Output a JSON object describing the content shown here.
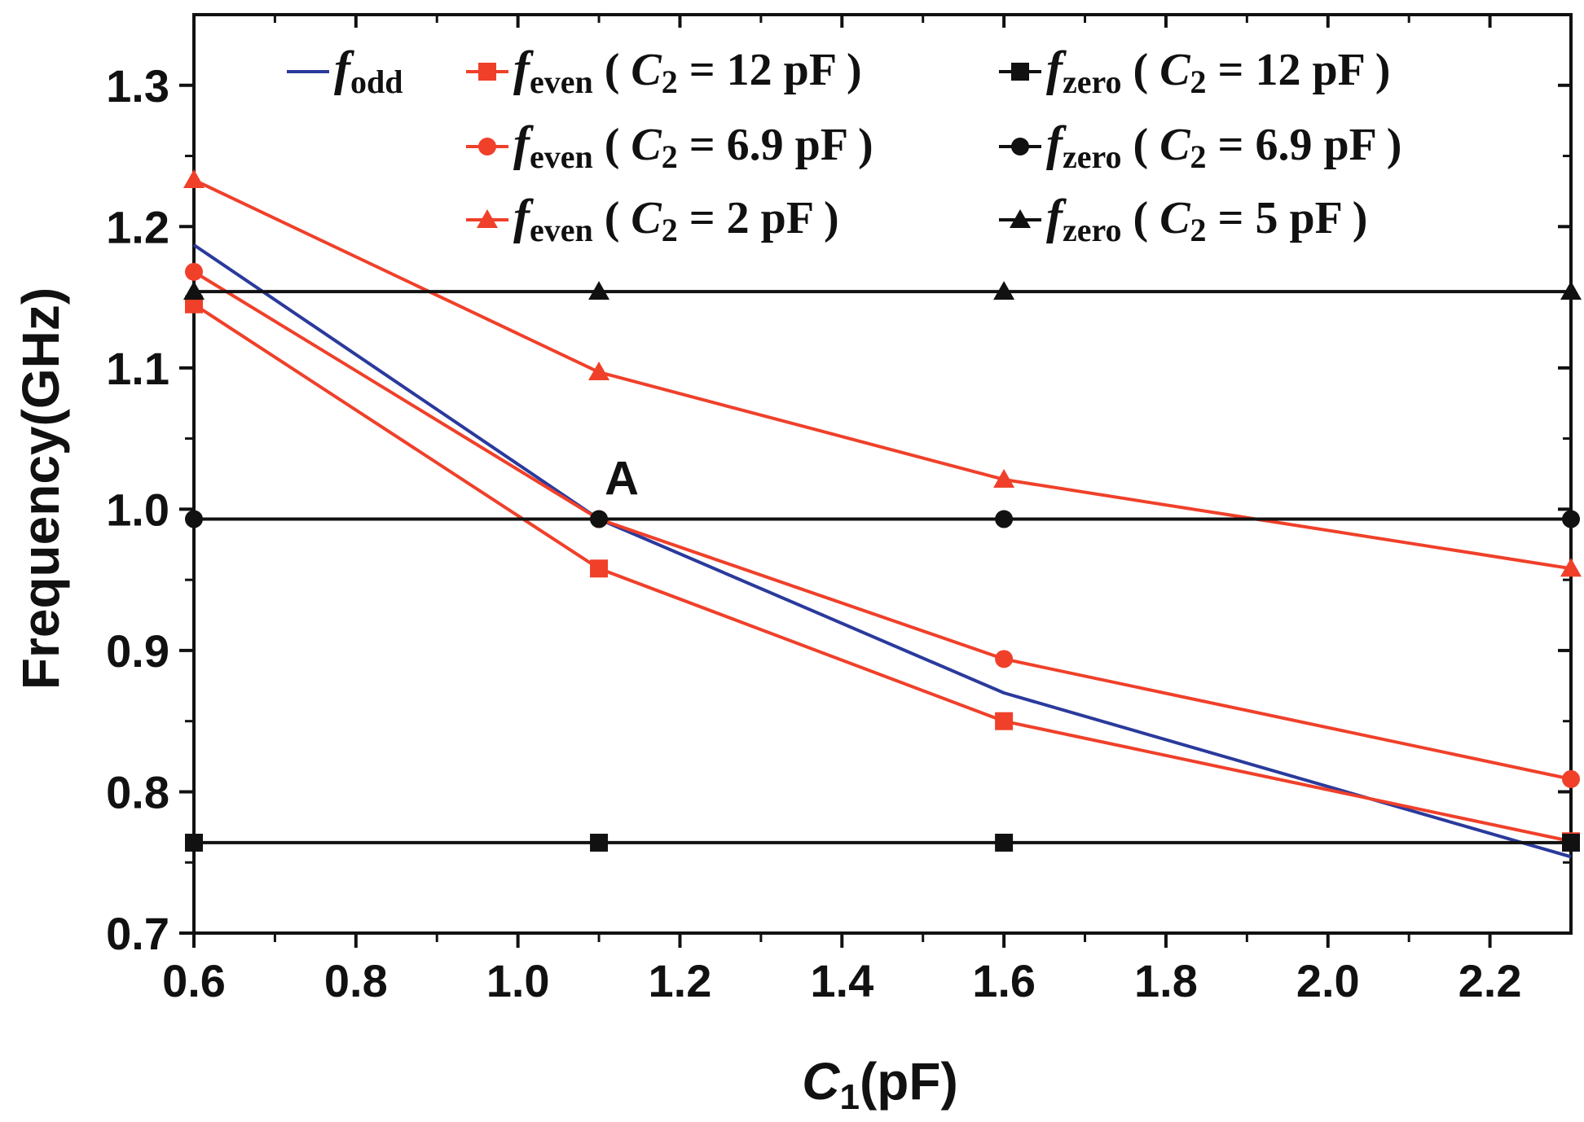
{
  "chart_data": {
    "type": "line",
    "title": "",
    "xlabel": {
      "main": "C",
      "sub": "1",
      "unit": "(pF)"
    },
    "ylabel": "Frequency(GHz)",
    "xlim": [
      0.6,
      2.3
    ],
    "ylim": [
      0.7,
      1.35
    ],
    "xticks": [
      "0.6",
      "0.8",
      "1.0",
      "1.2",
      "1.4",
      "1.6",
      "1.8",
      "2.0",
      "2.2"
    ],
    "yticks": [
      "0.7",
      "0.8",
      "0.9",
      "1.0",
      "1.1",
      "1.2",
      "1.3"
    ],
    "annotations": [
      {
        "text": "A",
        "x": 1.1,
        "y": 0.993
      }
    ],
    "series": [
      {
        "id": "odd",
        "name": "f_odd",
        "f": "f",
        "sub": "odd",
        "cond": "",
        "color": "#2a3a9c",
        "marker": "none",
        "x": [
          0.6,
          1.1,
          1.6,
          2.3
        ],
        "y": [
          1.187,
          0.993,
          0.87,
          0.754
        ]
      },
      {
        "id": "even12",
        "name": "f_even ( C2 = 12 pF )",
        "f": "f",
        "sub": "even",
        "cond": "12 pF",
        "color": "#f0402a",
        "marker": "square",
        "x": [
          0.6,
          1.1,
          1.6,
          2.3
        ],
        "y": [
          1.145,
          0.958,
          0.85,
          0.765
        ]
      },
      {
        "id": "even69",
        "name": "f_even ( C2 = 6.9 pF )",
        "f": "f",
        "sub": "even",
        "cond": "6.9 pF",
        "color": "#f0402a",
        "marker": "circle",
        "x": [
          0.6,
          1.1,
          1.6,
          2.3
        ],
        "y": [
          1.168,
          0.993,
          0.894,
          0.809
        ]
      },
      {
        "id": "even2",
        "name": "f_even ( C2 = 2 pF )",
        "f": "f",
        "sub": "even",
        "cond": "2 pF",
        "color": "#f0402a",
        "marker": "triangle",
        "x": [
          0.6,
          1.1,
          1.6,
          2.3
        ],
        "y": [
          1.233,
          1.097,
          1.021,
          0.958
        ]
      },
      {
        "id": "zero12",
        "name": "f_zero ( C2 = 12 pF )",
        "f": "f",
        "sub": "zero",
        "cond": "12 pF",
        "color": "#111111",
        "marker": "square",
        "x": [
          0.6,
          1.1,
          1.6,
          2.3
        ],
        "y": [
          0.764,
          0.764,
          0.764,
          0.764
        ]
      },
      {
        "id": "zero69",
        "name": "f_zero ( C2 = 6.9 pF )",
        "f": "f",
        "sub": "zero",
        "cond": "6.9 pF",
        "color": "#111111",
        "marker": "circle",
        "x": [
          0.6,
          1.1,
          1.6,
          2.3
        ],
        "y": [
          0.993,
          0.993,
          0.993,
          0.993
        ]
      },
      {
        "id": "zero5",
        "name": "f_zero ( C2 = 5 pF )",
        "f": "f",
        "sub": "zero",
        "cond": "5 pF",
        "color": "#111111",
        "marker": "triangle",
        "x": [
          0.6,
          1.1,
          1.6,
          2.3
        ],
        "y": [
          1.154,
          1.154,
          1.154,
          1.154
        ]
      }
    ],
    "legend": {
      "position": "top",
      "rows": [
        [
          "odd",
          "even12",
          "zero12"
        ],
        [
          null,
          "even69",
          "zero69"
        ],
        [
          null,
          "even2",
          "zero5"
        ]
      ],
      "cond_var": "C",
      "cond_sub": "2"
    }
  }
}
